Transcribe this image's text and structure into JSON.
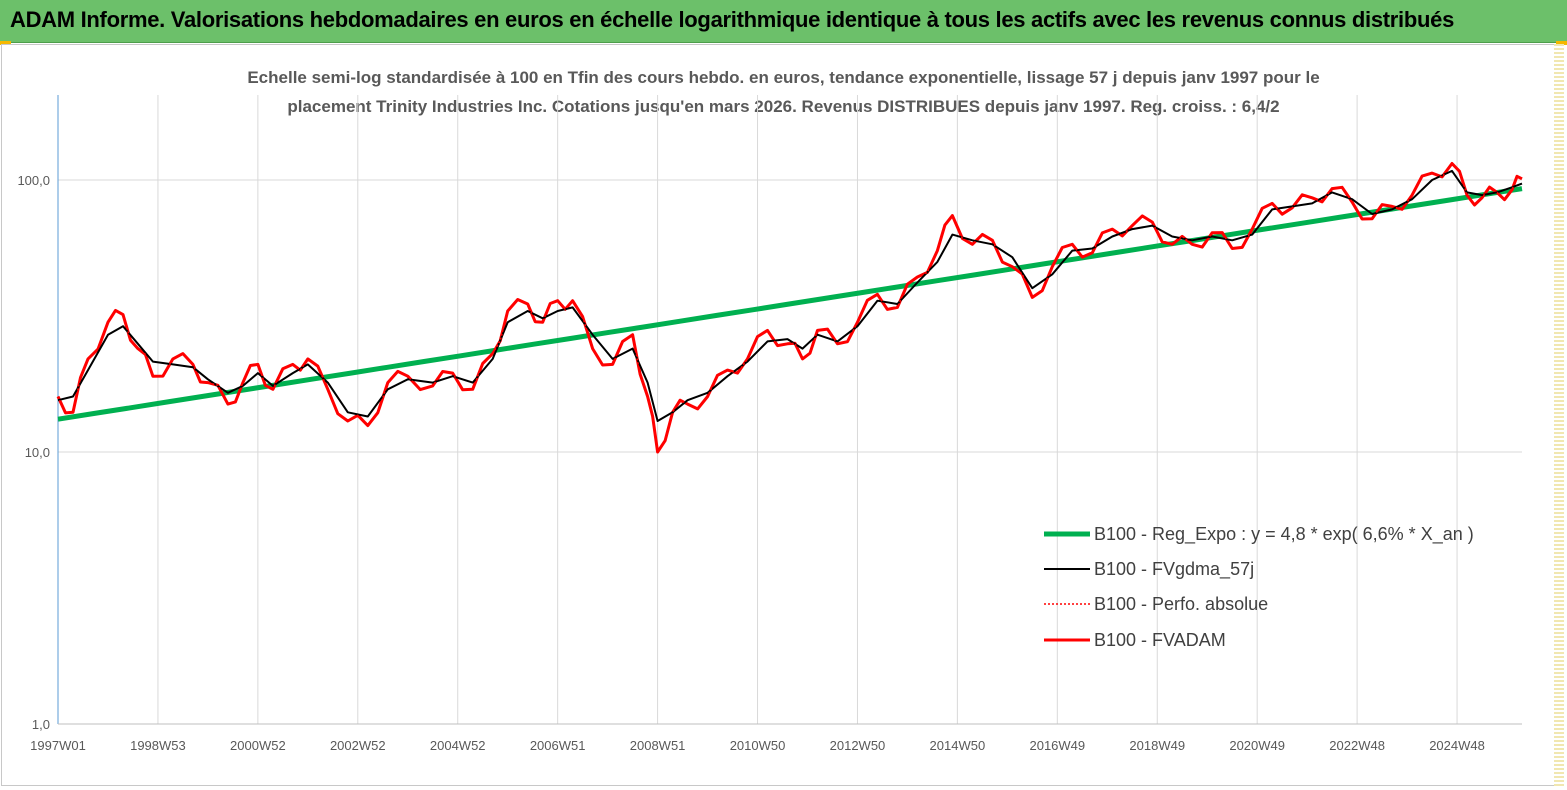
{
  "banner": {
    "title": "ADAM Informe. Valorisations hebdomadaires en euros en échelle logarithmique identique à tous les actifs avec les revenus connus distribués"
  },
  "colors": {
    "banner": "#6cc06a",
    "regression": "#00b050",
    "smoothed": "#000000",
    "perf_absolue": "#ff0000",
    "fvadam": "#ff0000",
    "corner": "#f5b800"
  },
  "chart_data": {
    "type": "line",
    "title_line1": "Echelle semi-log standardisée à 100 en Tfin des cours hebdo. en euros, tendance exponentielle, lissage 57 j depuis janv 1997 pour le",
    "title_line2": "placement Trinity Industries Inc. Cotations jusqu'en mars 2026. Revenus DISTRIBUES depuis janv 1997. Reg. croiss. : 6,4/2",
    "y_scale": "log",
    "ylim": [
      1,
      200
    ],
    "y_ticks": [
      {
        "value": 1,
        "label": "1,0"
      },
      {
        "value": 10,
        "label": "10,0"
      },
      {
        "value": 100,
        "label": "100,0"
      }
    ],
    "xlim": [
      1997.0,
      2026.3
    ],
    "x_ticks": [
      {
        "year": 1997.0,
        "label": "1997W01"
      },
      {
        "year": 1999.0,
        "label": "1998W53"
      },
      {
        "year": 2001.0,
        "label": "2000W52"
      },
      {
        "year": 2003.0,
        "label": "2002W52"
      },
      {
        "year": 2005.0,
        "label": "2004W52"
      },
      {
        "year": 2007.0,
        "label": "2006W51"
      },
      {
        "year": 2009.0,
        "label": "2008W51"
      },
      {
        "year": 2011.0,
        "label": "2010W50"
      },
      {
        "year": 2013.0,
        "label": "2012W50"
      },
      {
        "year": 2015.0,
        "label": "2014W50"
      },
      {
        "year": 2017.0,
        "label": "2016W49"
      },
      {
        "year": 2019.0,
        "label": "2018W49"
      },
      {
        "year": 2021.0,
        "label": "2020W49"
      },
      {
        "year": 2023.0,
        "label": "2022W48"
      },
      {
        "year": 2025.0,
        "label": "2024W48"
      }
    ],
    "grid": "vertical and horizontal",
    "legend_position": "bottom-right",
    "series": [
      {
        "name": "B100 - Reg_Expo : y = 4,8 * exp( 6,6% *  X_an )",
        "style": "thick",
        "x": [
          1997.0,
          2026.3
        ],
        "y": [
          13.2,
          93.0
        ]
      },
      {
        "name": "B100 - FVgdma_57j",
        "style": "thin",
        "x": [
          1997.0,
          1997.3,
          1997.6,
          1998.0,
          1998.3,
          1998.6,
          1998.9,
          1999.3,
          1999.7,
          2000.0,
          2000.4,
          2000.7,
          2001.0,
          2001.3,
          2001.7,
          2002.0,
          2002.4,
          2002.8,
          2003.2,
          2003.6,
          2004.0,
          2004.5,
          2004.9,
          2005.3,
          2005.7,
          2006.0,
          2006.4,
          2006.7,
          2007.0,
          2007.3,
          2007.7,
          2008.1,
          2008.5,
          2008.8,
          2009.0,
          2009.3,
          2009.6,
          2010.0,
          2010.4,
          2010.8,
          2011.2,
          2011.6,
          2011.9,
          2012.2,
          2012.6,
          2013.0,
          2013.4,
          2013.8,
          2014.2,
          2014.6,
          2014.9,
          2015.3,
          2015.7,
          2016.1,
          2016.5,
          2016.9,
          2017.3,
          2017.7,
          2018.1,
          2018.5,
          2018.9,
          2019.3,
          2019.7,
          2020.1,
          2020.5,
          2020.9,
          2021.3,
          2021.7,
          2022.1,
          2022.5,
          2022.9,
          2023.3,
          2023.7,
          2024.1,
          2024.5,
          2024.9,
          2025.2,
          2025.5,
          2025.8,
          2026.1,
          2026.3
        ],
        "y": [
          15.5,
          16.0,
          20.0,
          27.0,
          29.0,
          25.0,
          21.5,
          21.0,
          20.5,
          18.5,
          16.5,
          17.5,
          19.5,
          17.5,
          19.5,
          21.0,
          18.0,
          14.0,
          13.5,
          17.0,
          18.5,
          18.0,
          19.0,
          18.0,
          22.0,
          30.0,
          33.0,
          31.0,
          33.0,
          34.0,
          27.0,
          22.0,
          24.0,
          18.0,
          13.0,
          14.0,
          15.5,
          16.5,
          19.0,
          21.5,
          25.5,
          26.0,
          24.0,
          27.0,
          25.5,
          29.0,
          36.0,
          35.0,
          42.0,
          50.0,
          63.0,
          60.0,
          58.0,
          52.0,
          40.0,
          45.0,
          55.0,
          56.0,
          62.0,
          66.0,
          68.0,
          62.0,
          60.0,
          62.0,
          60.0,
          63.0,
          78.0,
          80.0,
          82.0,
          90.0,
          85.0,
          75.0,
          78.0,
          85.0,
          100.0,
          108.0,
          90.0,
          88.0,
          90.0,
          94.0,
          97.0
        ]
      },
      {
        "name": "B100 - Perfo. absolue",
        "style": "dotted",
        "x": [
          1997.0,
          1997.3,
          1997.6,
          1998.0,
          1998.3,
          1998.6,
          1998.9,
          1999.3,
          1999.7,
          2000.0,
          2000.4,
          2000.7,
          2001.0,
          2001.3,
          2001.7,
          2002.0,
          2002.4,
          2002.8,
          2003.2,
          2003.6,
          2004.0,
          2004.5,
          2004.9,
          2005.3,
          2005.7,
          2006.0,
          2006.4,
          2006.7,
          2007.0,
          2007.3,
          2007.7,
          2008.1,
          2008.5,
          2008.8,
          2009.0,
          2009.3,
          2009.6,
          2010.0,
          2010.4,
          2010.8,
          2011.2,
          2011.6,
          2011.9,
          2012.2,
          2012.6,
          2013.0,
          2013.4,
          2013.8,
          2014.2,
          2014.6,
          2014.9,
          2015.3,
          2015.7,
          2016.1,
          2016.5,
          2016.9,
          2017.3,
          2017.7,
          2018.1,
          2018.5,
          2018.9,
          2019.3,
          2019.7,
          2020.1,
          2020.5,
          2020.9,
          2021.3,
          2021.7,
          2022.1,
          2022.5,
          2022.9,
          2023.3,
          2023.7,
          2024.1,
          2024.5,
          2024.9,
          2025.2,
          2025.5,
          2025.8,
          2026.1,
          2026.3
        ],
        "y": [
          16.0,
          14.0,
          22.0,
          30.0,
          32.0,
          24.0,
          19.0,
          22.0,
          21.0,
          18.0,
          15.0,
          18.0,
          21.0,
          17.0,
          21.0,
          22.0,
          17.0,
          13.0,
          12.5,
          18.0,
          19.0,
          17.5,
          19.5,
          17.0,
          23.0,
          33.0,
          35.0,
          30.0,
          36.0,
          36.0,
          24.0,
          21.0,
          27.0,
          16.0,
          10.0,
          14.0,
          15.0,
          16.0,
          20.0,
          22.0,
          28.0,
          25.0,
          22.0,
          28.0,
          25.0,
          30.0,
          38.0,
          34.0,
          44.0,
          55.0,
          74.0,
          58.0,
          60.0,
          48.0,
          37.0,
          48.0,
          58.0,
          54.0,
          66.0,
          68.0,
          70.0,
          58.0,
          58.0,
          64.0,
          56.0,
          66.0,
          82.0,
          79.0,
          86.0,
          93.0,
          83.0,
          72.0,
          80.0,
          88.0,
          106.0,
          115.0,
          88.0,
          86.0,
          90.0,
          92.0,
          101.0
        ]
      },
      {
        "name": "B100 - FVADAM",
        "style": "thick",
        "x": [
          1997.0,
          1997.3,
          1997.6,
          1998.0,
          1998.3,
          1998.6,
          1998.9,
          1999.3,
          1999.7,
          2000.0,
          2000.4,
          2000.7,
          2001.0,
          2001.3,
          2001.7,
          2002.0,
          2002.4,
          2002.8,
          2003.2,
          2003.6,
          2004.0,
          2004.5,
          2004.9,
          2005.3,
          2005.7,
          2006.0,
          2006.4,
          2006.7,
          2007.0,
          2007.3,
          2007.7,
          2008.1,
          2008.5,
          2008.8,
          2009.0,
          2009.3,
          2009.6,
          2010.0,
          2010.4,
          2010.8,
          2011.2,
          2011.6,
          2011.9,
          2012.2,
          2012.6,
          2013.0,
          2013.4,
          2013.8,
          2014.2,
          2014.6,
          2014.9,
          2015.3,
          2015.7,
          2016.1,
          2016.5,
          2016.9,
          2017.3,
          2017.7,
          2018.1,
          2018.5,
          2018.9,
          2019.3,
          2019.7,
          2020.1,
          2020.5,
          2020.9,
          2021.3,
          2021.7,
          2022.1,
          2022.5,
          2022.9,
          2023.3,
          2023.7,
          2024.1,
          2024.5,
          2024.9,
          2025.2,
          2025.5,
          2025.8,
          2026.1,
          2026.3
        ],
        "y": [
          16.0,
          14.0,
          22.0,
          30.0,
          32.0,
          24.0,
          19.0,
          22.0,
          21.0,
          18.0,
          15.0,
          18.0,
          21.0,
          17.0,
          21.0,
          22.0,
          17.0,
          13.0,
          12.5,
          18.0,
          19.0,
          17.5,
          19.5,
          17.0,
          23.0,
          33.0,
          35.0,
          30.0,
          36.0,
          36.0,
          24.0,
          21.0,
          27.0,
          16.0,
          10.0,
          14.0,
          15.0,
          16.0,
          20.0,
          22.0,
          28.0,
          25.0,
          22.0,
          28.0,
          25.0,
          30.0,
          38.0,
          34.0,
          44.0,
          55.0,
          74.0,
          58.0,
          60.0,
          48.0,
          37.0,
          48.0,
          58.0,
          54.0,
          66.0,
          68.0,
          70.0,
          58.0,
          58.0,
          64.0,
          56.0,
          66.0,
          82.0,
          79.0,
          86.0,
          93.0,
          83.0,
          72.0,
          80.0,
          88.0,
          106.0,
          115.0,
          88.0,
          86.0,
          90.0,
          92.0,
          101.0
        ]
      }
    ]
  }
}
